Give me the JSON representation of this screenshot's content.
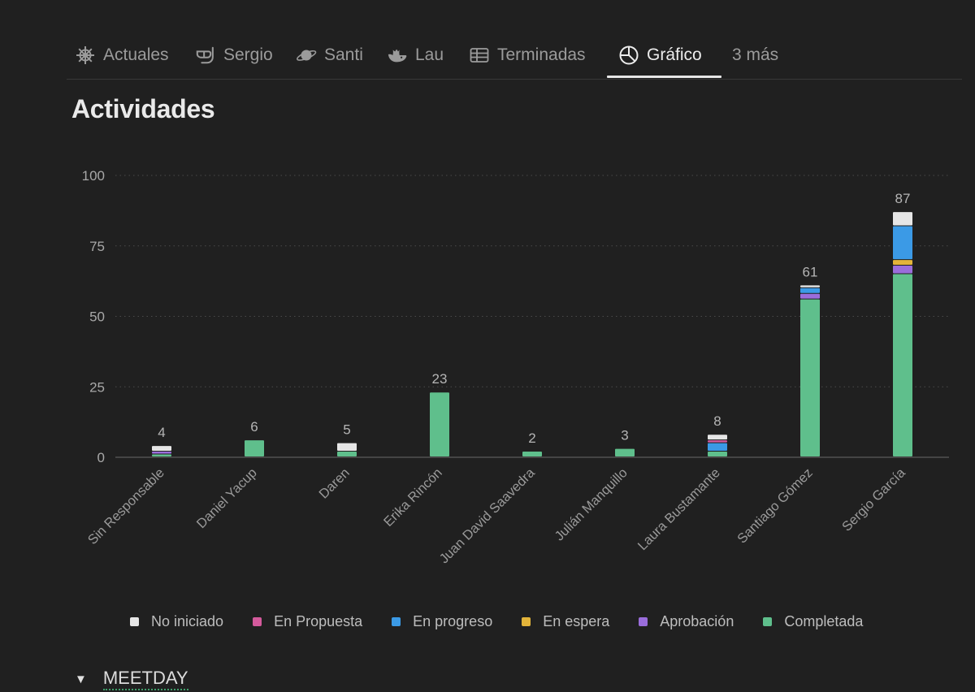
{
  "tabs": [
    {
      "label": "Actuales",
      "icon": "helm-wheel-icon"
    },
    {
      "label": "Sergio",
      "icon": "snorkel-mask-icon"
    },
    {
      "label": "Santi",
      "icon": "ringed-planet-icon"
    },
    {
      "label": "Lau",
      "icon": "whale-icon"
    },
    {
      "label": "Terminadas",
      "icon": "table-icon"
    },
    {
      "label": "Gráfico",
      "icon": "pie-chart-icon",
      "active": true
    },
    {
      "label": "3 más"
    }
  ],
  "page": {
    "title": "Actividades"
  },
  "chart_data": {
    "type": "bar",
    "stacked": true,
    "ylim": [
      0,
      100
    ],
    "yticks": [
      0,
      25,
      50,
      75,
      100
    ],
    "grid": true,
    "legend_position": "bottom",
    "categories": [
      "Sin Responsable",
      "Daniel Yacup",
      "Daren",
      "Erika Rincón",
      "Juan David Saavedra",
      "Julián Manquillo",
      "Laura Bustamante",
      "Santiago Gómez",
      "Sergio García"
    ],
    "totals": [
      4,
      6,
      5,
      23,
      2,
      3,
      8,
      61,
      87
    ],
    "series": [
      {
        "name": "Completada",
        "color": "#5fbf8c",
        "values": [
          1,
          6,
          2,
          23,
          2,
          3,
          2,
          56,
          65
        ]
      },
      {
        "name": "Aprobación",
        "color": "#9a6ddb",
        "values": [
          1,
          0,
          0,
          0,
          0,
          0,
          0,
          2,
          3
        ]
      },
      {
        "name": "En espera",
        "color": "#e3b43a",
        "values": [
          0,
          0,
          0,
          0,
          0,
          0,
          0,
          0,
          2
        ]
      },
      {
        "name": "En progreso",
        "color": "#3b9ae6",
        "values": [
          0,
          0,
          0,
          0,
          0,
          0,
          3,
          2,
          12
        ]
      },
      {
        "name": "En Propuesta",
        "color": "#d45a9c",
        "values": [
          0,
          0,
          0,
          0,
          0,
          0,
          1,
          0,
          0
        ]
      },
      {
        "name": "No iniciado",
        "color": "#e6e6e6",
        "values": [
          2,
          0,
          3,
          0,
          0,
          0,
          2,
          1,
          5
        ]
      }
    ]
  },
  "legend": [
    {
      "label": "No iniciado",
      "color": "#e6e6e6"
    },
    {
      "label": "En Propuesta",
      "color": "#d45a9c"
    },
    {
      "label": "En progreso",
      "color": "#3b9ae6"
    },
    {
      "label": "En espera",
      "color": "#e3b43a"
    },
    {
      "label": "Aprobación",
      "color": "#9a6ddb"
    },
    {
      "label": "Completada",
      "color": "#5fbf8c"
    }
  ],
  "section": {
    "label": "MEETDAY",
    "toggle_icon": "triangle-down-icon"
  }
}
